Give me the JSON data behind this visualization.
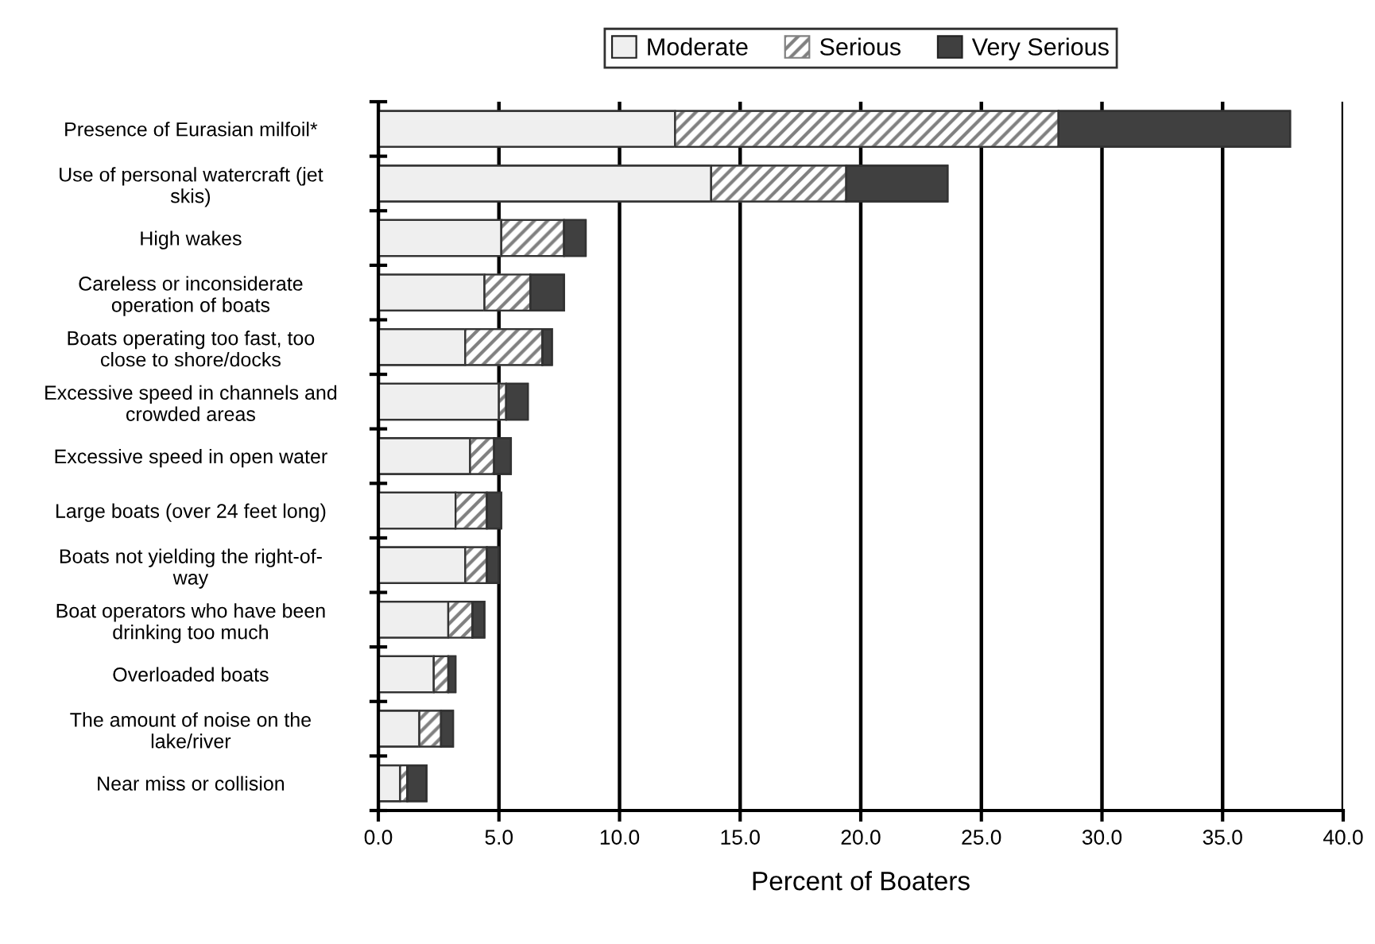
{
  "chart_data": {
    "type": "bar",
    "orientation": "horizontal",
    "stacked": true,
    "categories": [
      "Presence of Eurasian milfoil*",
      "Use of personal watercraft (jet\nskis)",
      "High wakes",
      "Careless or inconsiderate\noperation of boats",
      "Boats operating too fast, too\nclose to shore/docks",
      "Excessive speed in channels and\ncrowded areas",
      "Excessive speed in open water",
      "Large boats (over 24 feet long)",
      "Boats not yielding the right-of-\nway",
      "Boat operators who have been\ndrinking too much",
      "Overloaded boats",
      "The amount of noise on the\nlake/river",
      "Near miss or collision"
    ],
    "series": [
      {
        "name": "Moderate",
        "color": "#efefef",
        "values": [
          12.3,
          13.8,
          5.1,
          4.4,
          3.6,
          5.0,
          3.8,
          3.2,
          3.6,
          2.9,
          2.3,
          1.7,
          0.9
        ]
      },
      {
        "name": "Serious",
        "color": "#808080",
        "values": [
          15.9,
          5.6,
          2.6,
          1.9,
          3.2,
          0.3,
          1.0,
          1.3,
          0.9,
          1.0,
          0.6,
          0.9,
          0.3
        ]
      },
      {
        "name": "Very Serious",
        "color": "#404040",
        "values": [
          9.6,
          4.2,
          0.9,
          1.4,
          0.4,
          0.9,
          0.7,
          0.6,
          0.5,
          0.5,
          0.3,
          0.5,
          0.8
        ]
      }
    ],
    "xlabel": "Percent of Boaters",
    "xlim": [
      0,
      40
    ],
    "xticks": [
      {
        "value": 0,
        "label": "0.0"
      },
      {
        "value": 5,
        "label": "5.0"
      },
      {
        "value": 10,
        "label": "10.0"
      },
      {
        "value": 15,
        "label": "15.0"
      },
      {
        "value": 20,
        "label": "20.0"
      },
      {
        "value": 25,
        "label": "25.0"
      },
      {
        "value": 30,
        "label": "30.0"
      },
      {
        "value": 35,
        "label": "35.0"
      },
      {
        "value": 40,
        "label": "40.0"
      }
    ],
    "grid": "x",
    "legend": "top"
  }
}
